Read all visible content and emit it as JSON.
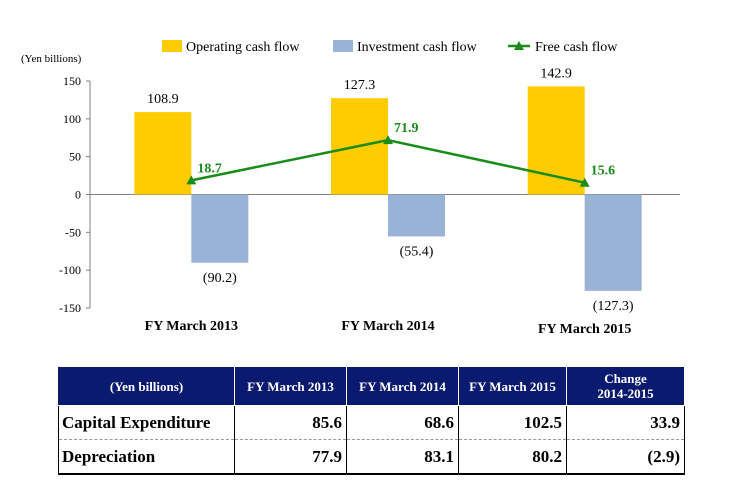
{
  "chart_data": {
    "type": "bar",
    "unit_label": "(Yen billions)",
    "categories": [
      "FY March 2013",
      "FY March 2014",
      "FY March 2015"
    ],
    "series": [
      {
        "name": "Operating cash flow",
        "kind": "bar",
        "color": "#ffcc00",
        "values": [
          108.9,
          127.3,
          142.9
        ],
        "labels": [
          "108.9",
          "127.3",
          "142.9"
        ]
      },
      {
        "name": "Investment cash flow",
        "kind": "bar",
        "color": "#99b3d6",
        "values": [
          -90.2,
          -55.4,
          -127.3
        ],
        "labels": [
          "(90.2)",
          "(55.4)",
          "(127.3)"
        ]
      },
      {
        "name": "Free cash flow",
        "kind": "line",
        "color": "#1a8c1a",
        "values": [
          18.7,
          71.9,
          15.6
        ],
        "labels": [
          "18.7",
          "71.9",
          "15.6"
        ]
      }
    ],
    "yticks": [
      150,
      100,
      50,
      0,
      -50,
      -100,
      -150
    ],
    "ylim": [
      -150,
      150
    ],
    "legend_position": "top"
  },
  "table": {
    "header": [
      "(Yen billions)",
      "FY March 2013",
      "FY March 2014",
      "FY March 2015",
      "Change",
      "2014-2015"
    ],
    "rows": [
      {
        "label": "Capital Expenditure",
        "values": [
          "85.6",
          "68.6",
          "102.5",
          "33.9"
        ]
      },
      {
        "label": "Depreciation",
        "values": [
          "77.9",
          "83.1",
          "80.2",
          "(2.9)"
        ]
      }
    ]
  }
}
